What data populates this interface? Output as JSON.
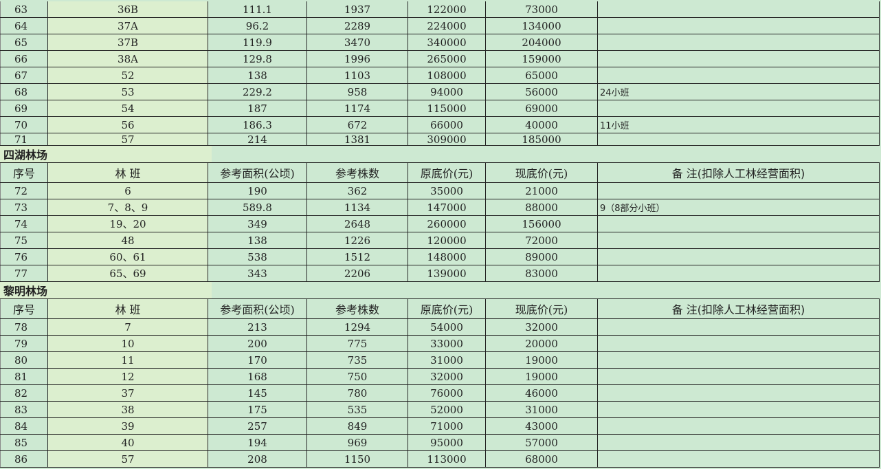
{
  "header_labels": {
    "no": "序号",
    "block": "林 班",
    "area": "参考面积(公顷)",
    "trees": "参考株数",
    "orig_price": "原底价(元)",
    "cur_price": "现底价(元)",
    "remark": "备 注(扣除人工林经营面积)"
  },
  "sections": [
    {
      "title": "",
      "rows": [
        [
          "63",
          "36B",
          "111.1",
          "1937",
          "122000",
          "73000",
          ""
        ],
        [
          "64",
          "37A",
          "96.2",
          "2289",
          "224000",
          "134000",
          ""
        ],
        [
          "65",
          "37B",
          "119.9",
          "3470",
          "340000",
          "204000",
          ""
        ],
        [
          "66",
          "38A",
          "129.8",
          "1996",
          "265000",
          "159000",
          ""
        ],
        [
          "67",
          "52",
          "138",
          "1103",
          "108000",
          "65000",
          ""
        ],
        [
          "68",
          "53",
          "229.2",
          "958",
          "94000",
          "56000",
          "24小班"
        ],
        [
          "69",
          "54",
          "187",
          "1174",
          "115000",
          "69000",
          ""
        ],
        [
          "70",
          "56",
          "186.3",
          "672",
          "66000",
          "40000",
          "11小班"
        ],
        [
          "71",
          "57",
          "214",
          "1381",
          "309000",
          "185000",
          ""
        ]
      ]
    },
    {
      "title": "四湖林场",
      "rows": [
        [
          "72",
          "6",
          "190",
          "362",
          "35000",
          "21000",
          ""
        ],
        [
          "73",
          "7、8、9",
          "589.8",
          "1134",
          "147000",
          "88000",
          "9（8部分小班）"
        ],
        [
          "74",
          "19、20",
          "349",
          "2648",
          "260000",
          "156000",
          ""
        ],
        [
          "75",
          "48",
          "138",
          "1226",
          "120000",
          "72000",
          ""
        ],
        [
          "76",
          "60、61",
          "538",
          "1512",
          "148000",
          "89000",
          ""
        ],
        [
          "77",
          "65、69",
          "343",
          "2206",
          "139000",
          "83000",
          ""
        ]
      ]
    },
    {
      "title": "黎明林场",
      "rows": [
        [
          "78",
          "7",
          "213",
          "1294",
          "54000",
          "32000",
          ""
        ],
        [
          "79",
          "10",
          "200",
          "775",
          "33000",
          "20000",
          ""
        ],
        [
          "80",
          "11",
          "170",
          "735",
          "31000",
          "19000",
          ""
        ],
        [
          "81",
          "12",
          "168",
          "750",
          "32000",
          "19000",
          ""
        ],
        [
          "82",
          "37",
          "145",
          "780",
          "76000",
          "46000",
          ""
        ],
        [
          "83",
          "38",
          "175",
          "535",
          "52000",
          "31000",
          ""
        ],
        [
          "84",
          "39",
          "257",
          "849",
          "71000",
          "43000",
          ""
        ],
        [
          "85",
          "40",
          "194",
          "969",
          "95000",
          "57000",
          ""
        ],
        [
          "86",
          "57",
          "208",
          "1150",
          "113000",
          "68000",
          ""
        ]
      ]
    }
  ]
}
